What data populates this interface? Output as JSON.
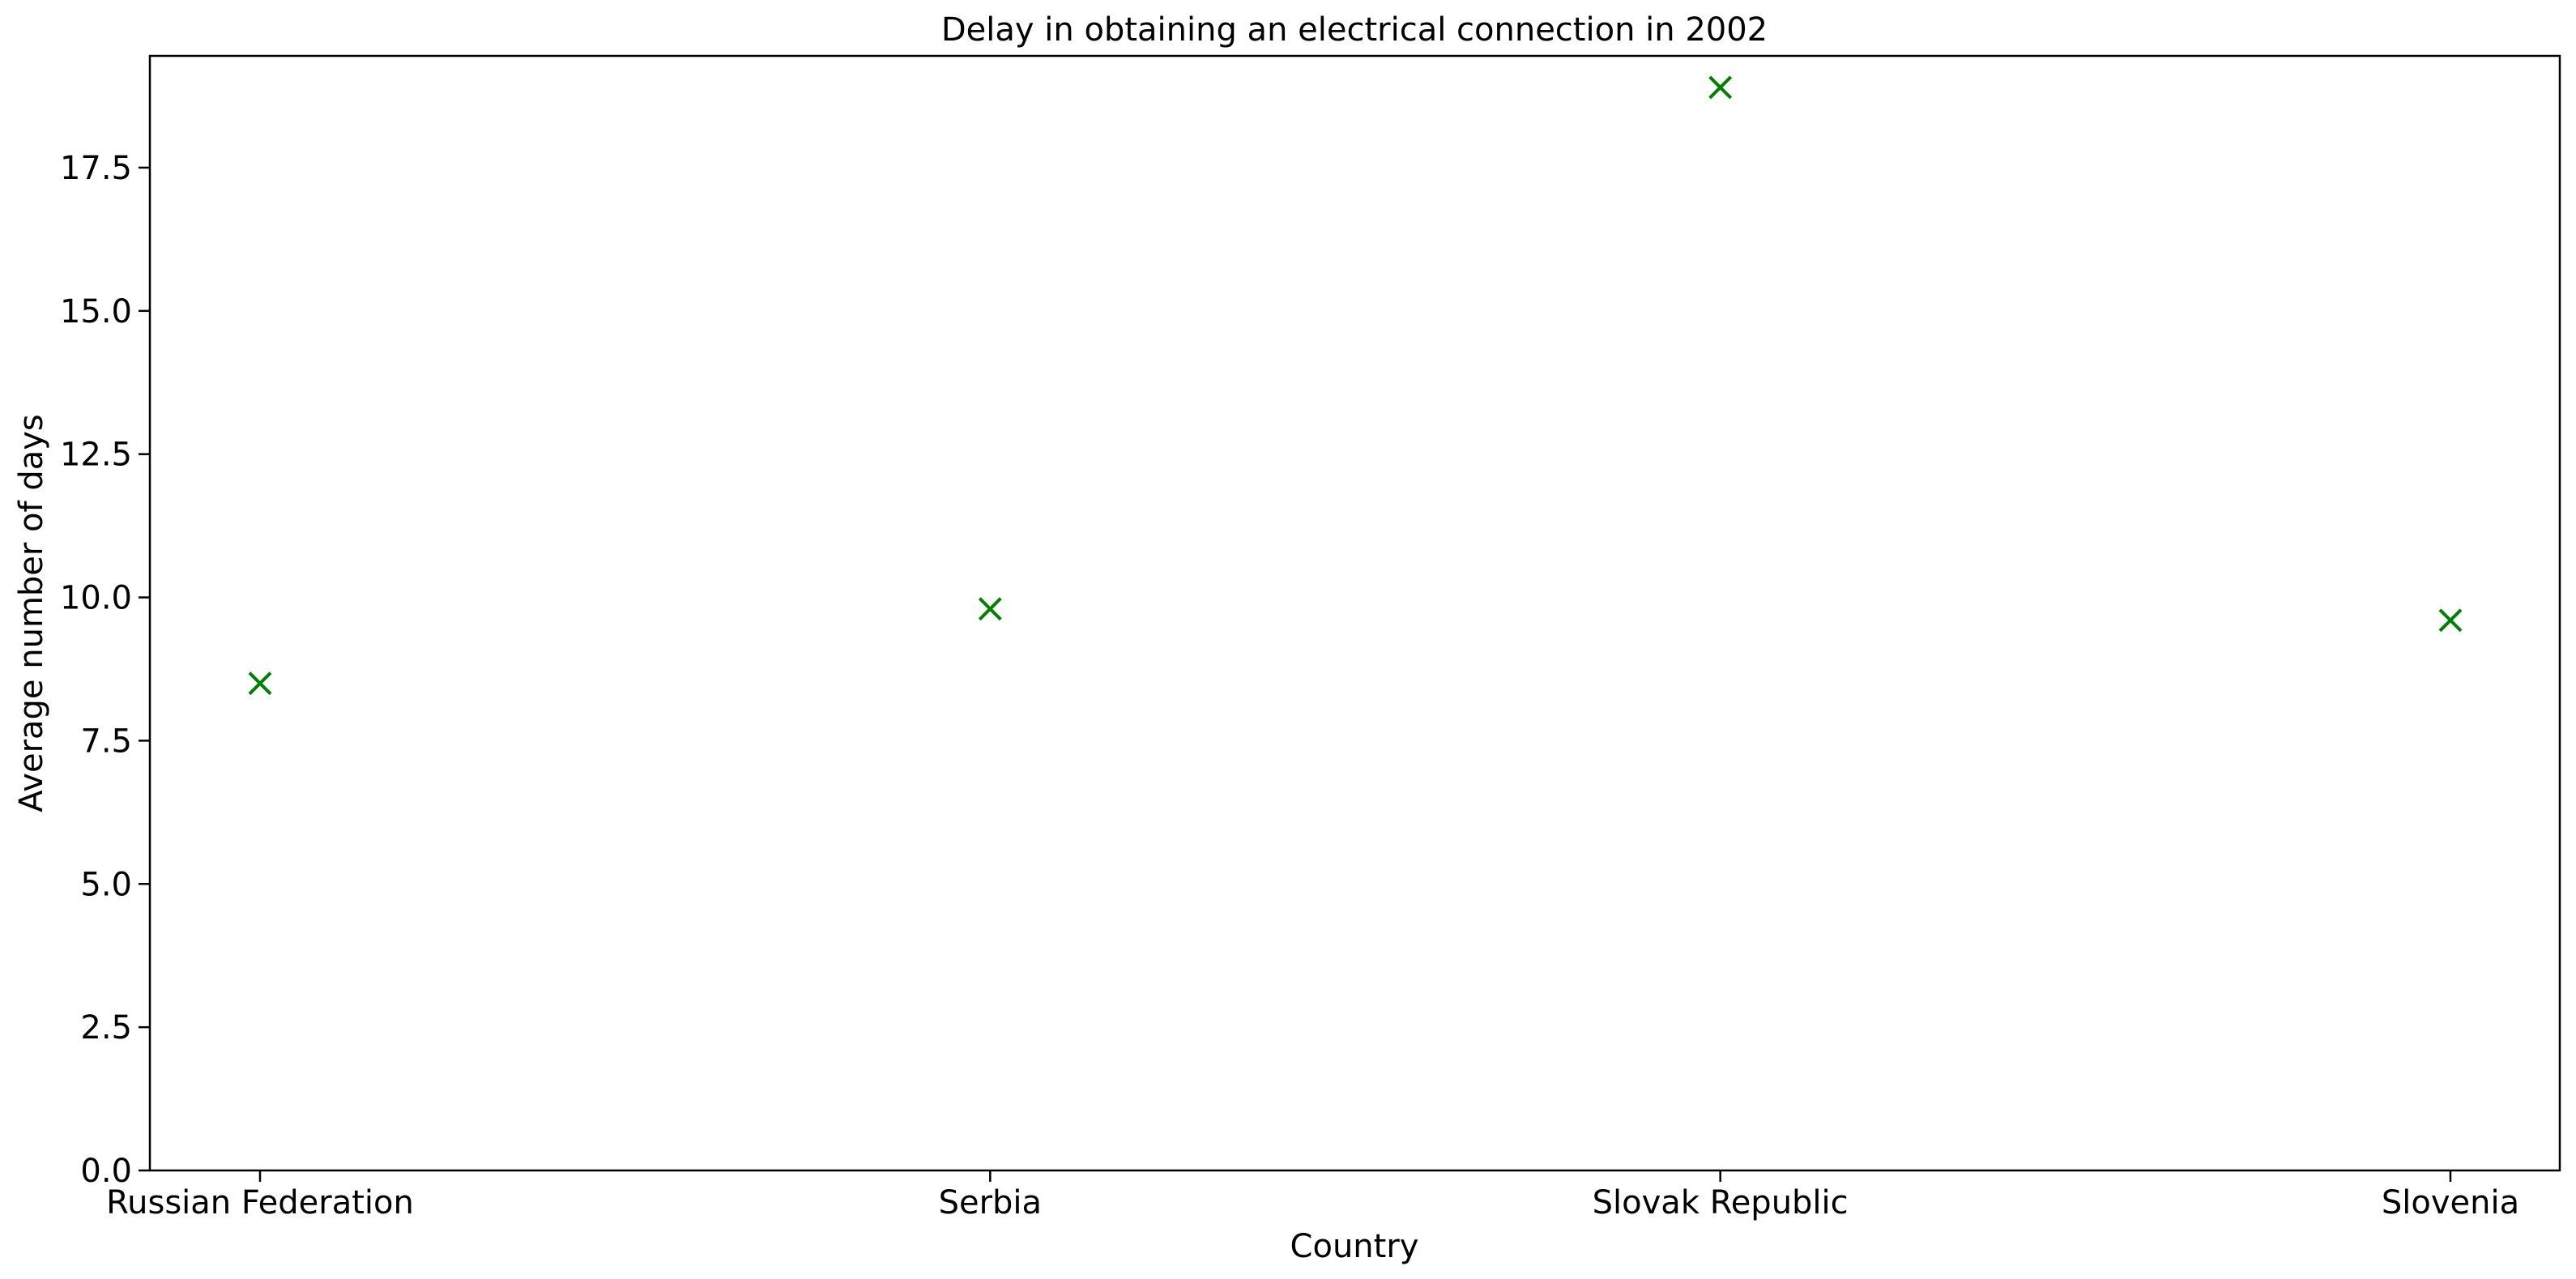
{
  "chart_data": {
    "type": "scatter",
    "title": "Delay in obtaining an electrical connection in 2002",
    "xlabel": "Country",
    "ylabel": "Average number of days",
    "categories": [
      "Russian Federation",
      "Serbia",
      "Slovak Republic",
      "Slovenia"
    ],
    "values": [
      8.5,
      9.8,
      18.9,
      9.6
    ],
    "ylim": [
      0,
      19.45
    ],
    "yticks": [
      "0.0",
      "2.5",
      "5.0",
      "7.5",
      "10.0",
      "12.5",
      "15.0",
      "17.5"
    ],
    "marker": "x",
    "color": "#008000",
    "grid": false
  }
}
